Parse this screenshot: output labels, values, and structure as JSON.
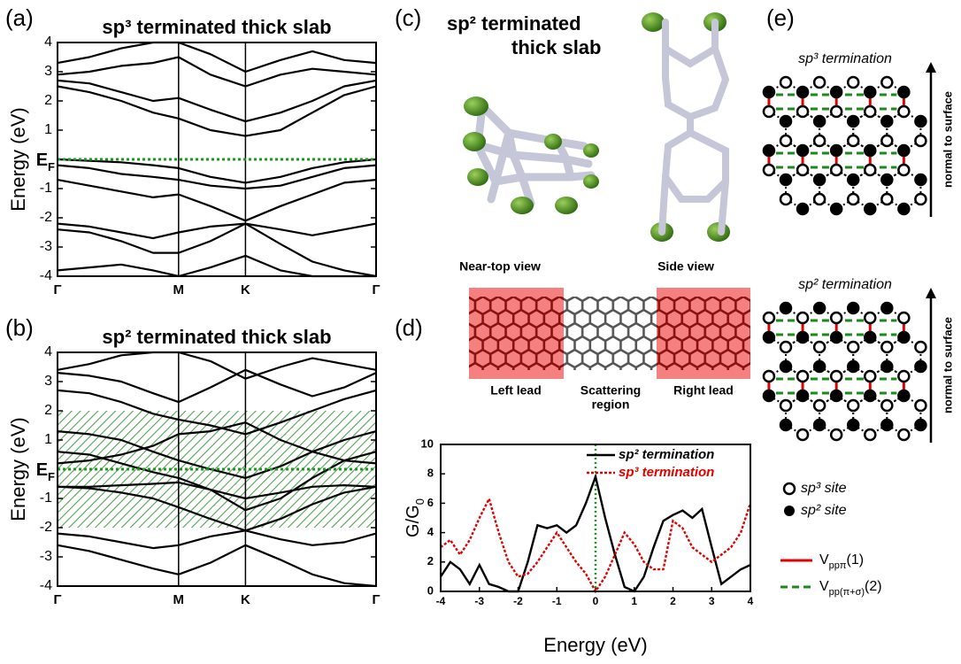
{
  "panel_labels": [
    "(a)",
    "(b)",
    "(c)",
    "(d)",
    "(e)"
  ],
  "chart_data": [
    {
      "type": "band",
      "title": "sp³ terminated thick slab",
      "ylabel": "Energy (eV)",
      "ef_label": {
        "base": "E",
        "sub": "F"
      },
      "ef": 0,
      "ef_color": "#1a9a1a",
      "color": "#000000",
      "x": [
        0,
        0.1,
        0.2,
        0.3,
        0.38,
        0.48,
        0.59,
        0.7,
        0.8,
        0.9,
        1
      ],
      "bands": [
        [
          0,
          -0.05,
          -0.1,
          -0.2,
          -0.3,
          -0.6,
          -0.8,
          -0.6,
          -0.3,
          -0.1,
          0
        ],
        [
          -0.2,
          -0.3,
          -0.5,
          -0.6,
          -0.7,
          -0.9,
          -1.0,
          -0.9,
          -0.6,
          -0.3,
          -0.2
        ],
        [
          -0.7,
          -0.9,
          -1.1,
          -1.3,
          -1.2,
          -1.6,
          -2.1,
          -1.6,
          -1.2,
          -0.8,
          -0.7
        ],
        [
          -2.2,
          -2.3,
          -2.5,
          -2.7,
          -2.5,
          -2.3,
          -2.2,
          -2.4,
          -2.6,
          -2.4,
          -2.2
        ],
        [
          -2.4,
          -2.5,
          -2.8,
          -3.2,
          -3.2,
          -2.8,
          -2.2,
          -2.9,
          -3.5,
          -3.8,
          -4
        ],
        [
          -3.8,
          -3.7,
          -3.6,
          -3.8,
          -4,
          -3.7,
          -3.3,
          -3.8,
          -4,
          -4,
          -4
        ],
        [
          2.5,
          2.3,
          2.0,
          1.6,
          1.4,
          1.0,
          0.8,
          1.0,
          1.6,
          2.2,
          2.5
        ],
        [
          2.7,
          2.6,
          2.3,
          2.0,
          2.1,
          1.7,
          1.3,
          1.6,
          2.0,
          2.5,
          2.7
        ],
        [
          2.9,
          3.0,
          3.2,
          3.3,
          3.5,
          2.9,
          2.5,
          2.9,
          3.1,
          3.0,
          2.9
        ],
        [
          3.3,
          3.5,
          3.8,
          4,
          4,
          3.6,
          3.0,
          3.4,
          3.7,
          3.4,
          3.3
        ]
      ],
      "xlim": [
        0,
        1
      ],
      "xticks": [
        {
          "value": 0,
          "label": "Γ"
        },
        {
          "value": 0.38,
          "label": "M"
        },
        {
          "value": 0.59,
          "label": "K"
        },
        {
          "value": 1,
          "label": "Γ"
        }
      ],
      "ylim": [
        -4,
        4
      ],
      "yticks": [
        -4,
        -3,
        -2,
        -1,
        1,
        2,
        3,
        4
      ]
    },
    {
      "type": "band",
      "title": "sp² terminated thick slab",
      "ylabel": "Energy (eV)",
      "ef_label": {
        "base": "E",
        "sub": "F"
      },
      "ef": 0,
      "ef_color": "#1a9a1a",
      "color": "#000000",
      "shade": [
        -2,
        2
      ],
      "shade_color": "#2a8a2a",
      "x": [
        0,
        0.1,
        0.2,
        0.3,
        0.38,
        0.48,
        0.59,
        0.7,
        0.8,
        0.9,
        1
      ],
      "bands": [
        [
          -0.6,
          -0.6,
          -0.55,
          -0.5,
          -0.45,
          -0.7,
          -1.0,
          -0.8,
          -0.6,
          -0.55,
          -0.6
        ],
        [
          -0.6,
          -0.65,
          -0.8,
          -1.0,
          -1.3,
          -1.7,
          -2.1,
          -1.7,
          -1.2,
          -0.8,
          -0.6
        ],
        [
          0.2,
          0.3,
          0.5,
          0.8,
          1.2,
          1.3,
          1.6,
          1.0,
          0.6,
          0.3,
          0.2
        ],
        [
          0.6,
          0.5,
          0.2,
          -0.1,
          -0.3,
          -0.7,
          -1.4,
          -1.0,
          -0.3,
          0.3,
          0.6
        ],
        [
          1.3,
          1.2,
          1.0,
          0.6,
          0.3,
          0.0,
          -0.3,
          0.1,
          0.6,
          1.0,
          1.3
        ],
        [
          -2.2,
          -2.3,
          -2.5,
          -2.7,
          -2.6,
          -2.3,
          -2.1,
          -2.4,
          -2.6,
          -2.5,
          -2.2
        ],
        [
          -2.6,
          -2.8,
          -3.1,
          -3.4,
          -3.6,
          -3.2,
          -2.6,
          -3.1,
          -3.6,
          -3.9,
          -4
        ],
        [
          2.7,
          2.6,
          2.3,
          1.9,
          1.7,
          1.5,
          1.2,
          1.6,
          2.0,
          2.4,
          2.7
        ],
        [
          3.3,
          3.2,
          3.0,
          2.6,
          2.3,
          2.8,
          3.4,
          2.9,
          2.5,
          2.8,
          3.3
        ],
        [
          3.4,
          3.6,
          3.9,
          4,
          4,
          3.7,
          3.1,
          3.5,
          3.8,
          3.6,
          3.4
        ]
      ],
      "xlim": [
        0,
        1
      ],
      "xticks": [
        {
          "value": 0,
          "label": "Γ"
        },
        {
          "value": 0.38,
          "label": "M"
        },
        {
          "value": 0.59,
          "label": "K"
        },
        {
          "value": 1,
          "label": "Γ"
        }
      ],
      "ylim": [
        -4,
        4
      ],
      "yticks": [
        -4,
        -3,
        -2,
        -1,
        1,
        2,
        3,
        4
      ]
    },
    {
      "type": "line",
      "xlabel": "Energy (eV)",
      "ylabel": {
        "base": "G/G",
        "sub": "0"
      },
      "x": [
        -4,
        -3.75,
        -3.5,
        -3.25,
        -3,
        -2.75,
        -2.5,
        -2.25,
        -2,
        -1.75,
        -1.5,
        -1.25,
        -1,
        -0.75,
        -0.5,
        -0.25,
        0,
        0.25,
        0.5,
        0.75,
        1,
        1.25,
        1.5,
        1.75,
        2,
        2.25,
        2.5,
        2.75,
        3,
        3.25,
        3.5,
        3.75,
        4
      ],
      "series": [
        {
          "name": "sp² termination",
          "color": "#000000",
          "dash": "solid",
          "values": [
            1,
            2,
            1.5,
            0.5,
            1.8,
            0.5,
            0.3,
            0,
            0,
            2,
            4.5,
            4.3,
            4.5,
            4,
            4.5,
            6,
            7.8,
            5,
            2.5,
            0.3,
            0,
            1,
            3,
            4.8,
            5.2,
            5.5,
            5,
            5.6,
            3,
            0.5,
            1,
            1.5,
            1.8
          ]
        },
        {
          "name": "sp³ termination",
          "color": "#e00000",
          "dash": "dotted",
          "values": [
            3,
            3.5,
            2.5,
            3.5,
            5,
            6.3,
            4,
            2,
            1,
            1.2,
            2,
            3,
            4,
            3,
            2,
            1.2,
            0,
            1,
            2.5,
            4,
            3.2,
            2,
            1.5,
            1.5,
            4.8,
            4.3,
            3,
            2.5,
            2,
            2.5,
            3,
            4,
            6
          ]
        }
      ],
      "xlim": [
        -4,
        4
      ],
      "xticks": [
        -4,
        -3,
        -2,
        -1,
        0,
        1,
        2,
        3,
        4
      ],
      "ylim": [
        0,
        10
      ],
      "yticks": [
        0,
        2,
        4,
        6,
        8,
        10
      ],
      "vline": 0,
      "vline_color": "#1a9a1a",
      "legend": "upper right"
    }
  ],
  "diagrams": {
    "c": {
      "title": [
        "sp² terminated",
        "thick slab"
      ],
      "views": [
        "Near-top view",
        "Side view"
      ]
    },
    "d": {
      "regions": [
        "Left lead",
        [
          "Scattering",
          "region"
        ],
        "Right lead"
      ]
    },
    "e": {
      "sections": [
        {
          "title": "sp³ termination",
          "arrow": "normal to surface"
        },
        {
          "title": "sp² termination",
          "arrow": "normal to surface"
        }
      ],
      "sites": [
        "sp³ site",
        "sp² site"
      ],
      "bonds": [
        {
          "base": "V",
          "sub": "ppπ",
          "tail": "(1)",
          "color": "#e00000"
        },
        {
          "base": "V",
          "sub": "pp(π+σ)",
          "tail": "(2)",
          "color": "#1a8a1a"
        }
      ]
    }
  }
}
